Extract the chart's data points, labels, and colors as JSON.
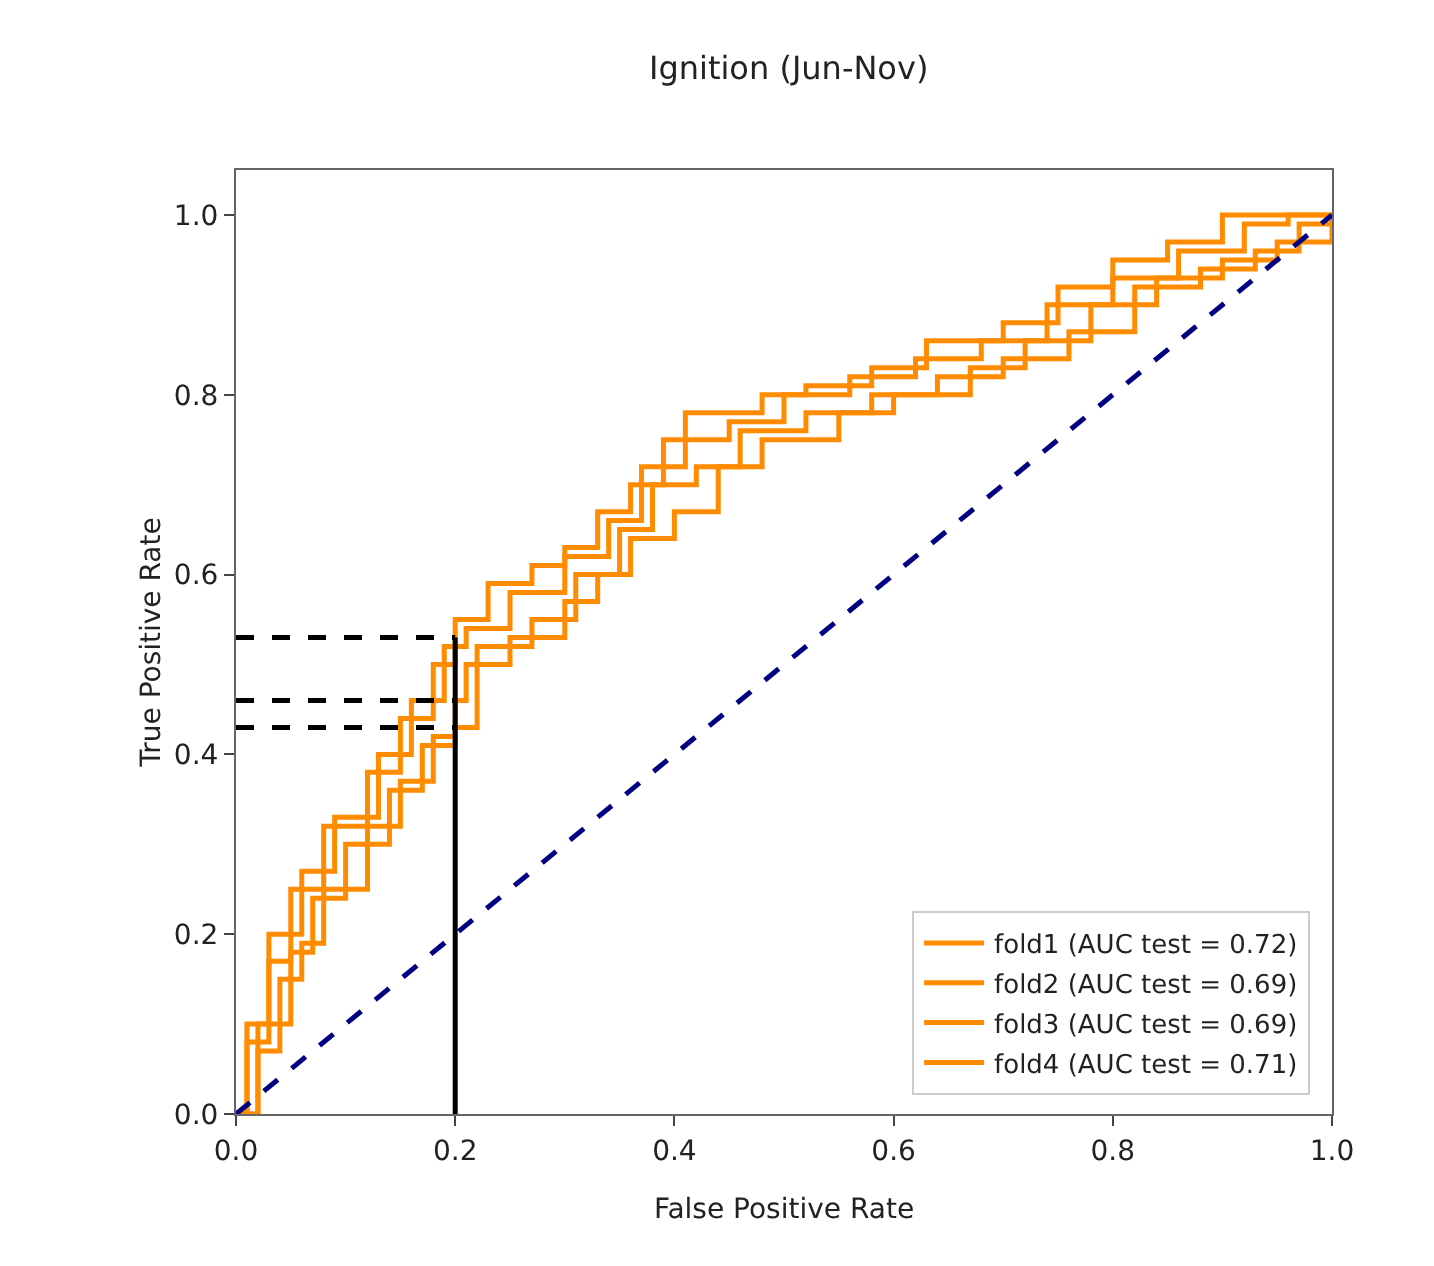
{
  "chart_data": {
    "type": "step",
    "title": "Ignition (Jun-Nov)",
    "xlabel": "False Positive Rate",
    "ylabel": "True Positive Rate",
    "xlim": [
      0,
      1
    ],
    "ylim": [
      0,
      1.05
    ],
    "xticks": [
      {
        "value": 0,
        "label": "0.0"
      },
      {
        "value": 0.2,
        "label": "0.2"
      },
      {
        "value": 0.4,
        "label": "0.4"
      },
      {
        "value": 0.6,
        "label": "0.6"
      },
      {
        "value": 0.8,
        "label": "0.8"
      },
      {
        "value": 1,
        "label": "1.0"
      }
    ],
    "yticks": [
      {
        "value": 0,
        "label": "0.0"
      },
      {
        "value": 0.2,
        "label": "0.2"
      },
      {
        "value": 0.4,
        "label": "0.4"
      },
      {
        "value": 0.6,
        "label": "0.6"
      },
      {
        "value": 0.8,
        "label": "0.8"
      },
      {
        "value": 1,
        "label": "1.0"
      }
    ],
    "grid": false,
    "legend": "bottom right",
    "marker": "none",
    "series": [
      {
        "name": "fold1 (AUC test = 0.72)",
        "color": "#ff8c00",
        "line_style": "solid",
        "x": [
          0,
          0.01,
          0.03,
          0.05,
          0.08,
          0.12,
          0.15,
          0.18,
          0.2,
          0.23,
          0.27,
          0.3,
          0.33,
          0.36,
          0.39,
          0.41,
          0.45,
          0.48,
          0.52,
          0.58,
          0.63,
          0.7,
          0.75,
          0.8,
          0.85,
          0.9,
          1
        ],
        "values": [
          0,
          0.08,
          0.17,
          0.25,
          0.32,
          0.38,
          0.44,
          0.5,
          0.55,
          0.59,
          0.61,
          0.63,
          0.67,
          0.7,
          0.75,
          0.78,
          0.78,
          0.8,
          0.81,
          0.83,
          0.86,
          0.88,
          0.92,
          0.95,
          0.97,
          1,
          1
        ]
      },
      {
        "name": "fold2 (AUC test = 0.69)",
        "color": "#ff8c00",
        "line_style": "solid",
        "x": [
          0,
          0.02,
          0.04,
          0.06,
          0.08,
          0.12,
          0.15,
          0.18,
          0.2,
          0.21,
          0.25,
          0.3,
          0.33,
          0.36,
          0.4,
          0.44,
          0.48,
          0.55,
          0.6,
          0.67,
          0.72,
          0.78,
          0.84,
          0.9,
          0.95,
          1
        ],
        "values": [
          0,
          0.07,
          0.15,
          0.19,
          0.25,
          0.32,
          0.37,
          0.42,
          0.46,
          0.5,
          0.53,
          0.57,
          0.6,
          0.64,
          0.67,
          0.72,
          0.75,
          0.78,
          0.8,
          0.83,
          0.86,
          0.9,
          0.93,
          0.95,
          0.97,
          1
        ]
      },
      {
        "name": "fold3 (AUC test = 0.69)",
        "color": "#ff8c00",
        "line_style": "solid",
        "x": [
          0,
          0.02,
          0.05,
          0.07,
          0.1,
          0.14,
          0.17,
          0.2,
          0.22,
          0.27,
          0.31,
          0.35,
          0.38,
          0.42,
          0.46,
          0.52,
          0.58,
          0.64,
          0.7,
          0.76,
          0.82,
          0.88,
          0.93,
          0.97,
          1
        ],
        "values": [
          0,
          0.1,
          0.18,
          0.24,
          0.3,
          0.36,
          0.41,
          0.43,
          0.52,
          0.55,
          0.6,
          0.65,
          0.7,
          0.72,
          0.76,
          0.78,
          0.8,
          0.82,
          0.84,
          0.87,
          0.92,
          0.94,
          0.96,
          0.99,
          1
        ]
      },
      {
        "name": "fold4 (AUC test = 0.71)",
        "color": "#ff8c00",
        "line_style": "solid",
        "x": [
          0,
          0.01,
          0.03,
          0.06,
          0.09,
          0.13,
          0.16,
          0.19,
          0.21,
          0.25,
          0.3,
          0.34,
          0.37,
          0.41,
          0.45,
          0.5,
          0.56,
          0.62,
          0.68,
          0.74,
          0.8,
          0.86,
          0.92,
          0.96,
          1
        ],
        "values": [
          0,
          0.1,
          0.2,
          0.27,
          0.33,
          0.4,
          0.46,
          0.52,
          0.54,
          0.58,
          0.62,
          0.66,
          0.72,
          0.75,
          0.77,
          0.8,
          0.82,
          0.84,
          0.86,
          0.9,
          0.93,
          0.96,
          0.99,
          1,
          1
        ]
      },
      {
        "type": "line",
        "color": "#000080",
        "line_style": "dashed",
        "x": [
          0,
          1
        ],
        "values": [
          0,
          1
        ]
      },
      {
        "type": "line",
        "color": "#000000",
        "line_style": "solid",
        "x": [
          0.2,
          0.2
        ],
        "values": [
          0,
          0.53
        ]
      },
      {
        "type": "line",
        "color": "#000000",
        "line_style": "dashed",
        "x": [
          0,
          0.2
        ],
        "values": [
          0.53,
          0.53
        ]
      },
      {
        "type": "line",
        "color": "#000000",
        "line_style": "dashed",
        "x": [
          0,
          0.2
        ],
        "values": [
          0.46,
          0.46
        ]
      },
      {
        "type": "line",
        "color": "#000000",
        "line_style": "dashed",
        "x": [
          0,
          0.2
        ],
        "values": [
          0.43,
          0.43
        ]
      }
    ]
  }
}
